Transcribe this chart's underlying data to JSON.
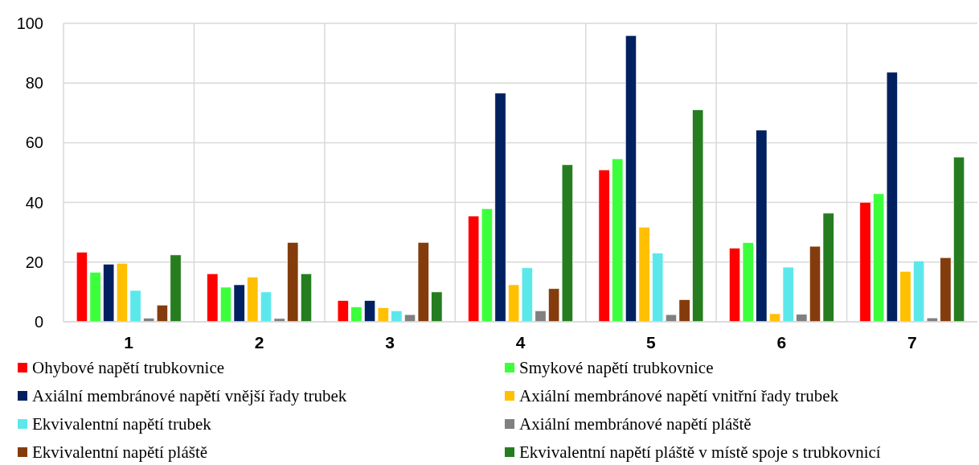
{
  "chart_data": {
    "type": "bar",
    "categories": [
      "1",
      "2",
      "3",
      "4",
      "5",
      "6",
      "7"
    ],
    "series": [
      {
        "name": "Ohybové napětí trubkovnice",
        "color": "#ff0000",
        "values": [
          23.3,
          16.1,
          7.1,
          35.4,
          50.9,
          24.7,
          40.0
        ]
      },
      {
        "name": "Smykové napětí trubkovnice",
        "color": "#3cff3c",
        "values": [
          16.6,
          11.6,
          5.0,
          37.9,
          54.6,
          26.5,
          42.9
        ]
      },
      {
        "name": "Axiální membránové napětí vnější řady trubek",
        "color": "#002060",
        "values": [
          19.3,
          12.4,
          7.1,
          76.6,
          95.9,
          64.2,
          83.6
        ]
      },
      {
        "name": "Axiální membránové napětí vnitřní řady trubek",
        "color": "#ffc000",
        "values": [
          19.6,
          15.0,
          4.7,
          12.4,
          31.7,
          2.7,
          16.9
        ]
      },
      {
        "name": "Ekvivalentní napětí trubek",
        "color": "#5ce8eb",
        "values": [
          10.5,
          10.0,
          3.7,
          18.1,
          23.0,
          18.3,
          20.4
        ]
      },
      {
        "name": "Axiální membránové napětí pláště",
        "color": "#808080",
        "values": [
          1.2,
          1.1,
          2.4,
          3.7,
          2.4,
          2.5,
          1.3
        ]
      },
      {
        "name": "Ekvivalentní napětí pláště",
        "color": "#843c0c",
        "values": [
          5.6,
          26.6,
          26.6,
          11.1,
          7.4,
          25.3,
          21.5
        ]
      },
      {
        "name": "Ekvivalentní napětí pláště v místě spoje s trubkovnicí",
        "color": "#257d20",
        "values": [
          22.4,
          16.1,
          10.0,
          52.6,
          71.0,
          36.4,
          55.2
        ]
      }
    ],
    "ylim": [
      0,
      100
    ],
    "yticks": [
      0,
      20,
      40,
      60,
      80,
      100
    ],
    "grid": true,
    "legend": "bottom"
  }
}
